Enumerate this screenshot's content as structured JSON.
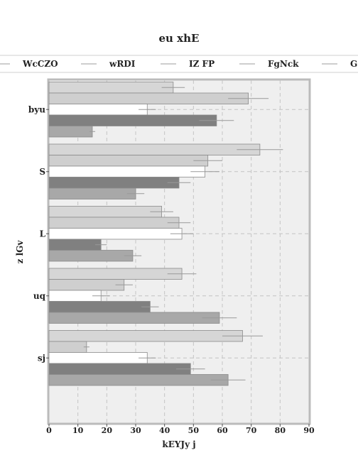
{
  "chart_data": {
    "type": "bar",
    "orientation": "horizontal",
    "title": "eu xhE",
    "xlabel": "kEYJy j",
    "ylabel": "z lGv",
    "xlim": [
      0,
      90
    ],
    "xticks": [
      0,
      10,
      20,
      30,
      40,
      50,
      60,
      70,
      80,
      90
    ],
    "categories": [
      "byu",
      "S",
      "L",
      "uq",
      "sj"
    ],
    "grid": true,
    "legend_position": "top",
    "series": [
      {
        "name": "WcCZO",
        "color": "#d6d6d6",
        "values": [
          43,
          73,
          39,
          46,
          67
        ],
        "errors": [
          4,
          8,
          4,
          5,
          7
        ]
      },
      {
        "name": "wRDI",
        "color": "#cfcfcf",
        "values": [
          69,
          55,
          45,
          26,
          13
        ],
        "errors": [
          7,
          5,
          4,
          3,
          1
        ]
      },
      {
        "name": "IZ FP",
        "color": "#ffffff",
        "values": [
          34,
          54,
          46,
          18,
          34
        ],
        "errors": [
          3,
          5,
          4,
          3,
          3
        ]
      },
      {
        "name": "FgNck",
        "color": "#808080",
        "values": [
          58,
          45,
          18,
          35,
          49
        ],
        "errors": [
          6,
          4,
          2,
          3,
          5
        ]
      },
      {
        "name": "G",
        "color": "#a8a8a8",
        "values": [
          15,
          30,
          29,
          59,
          62
        ],
        "errors": [
          1,
          3,
          3,
          6,
          6
        ]
      }
    ]
  }
}
